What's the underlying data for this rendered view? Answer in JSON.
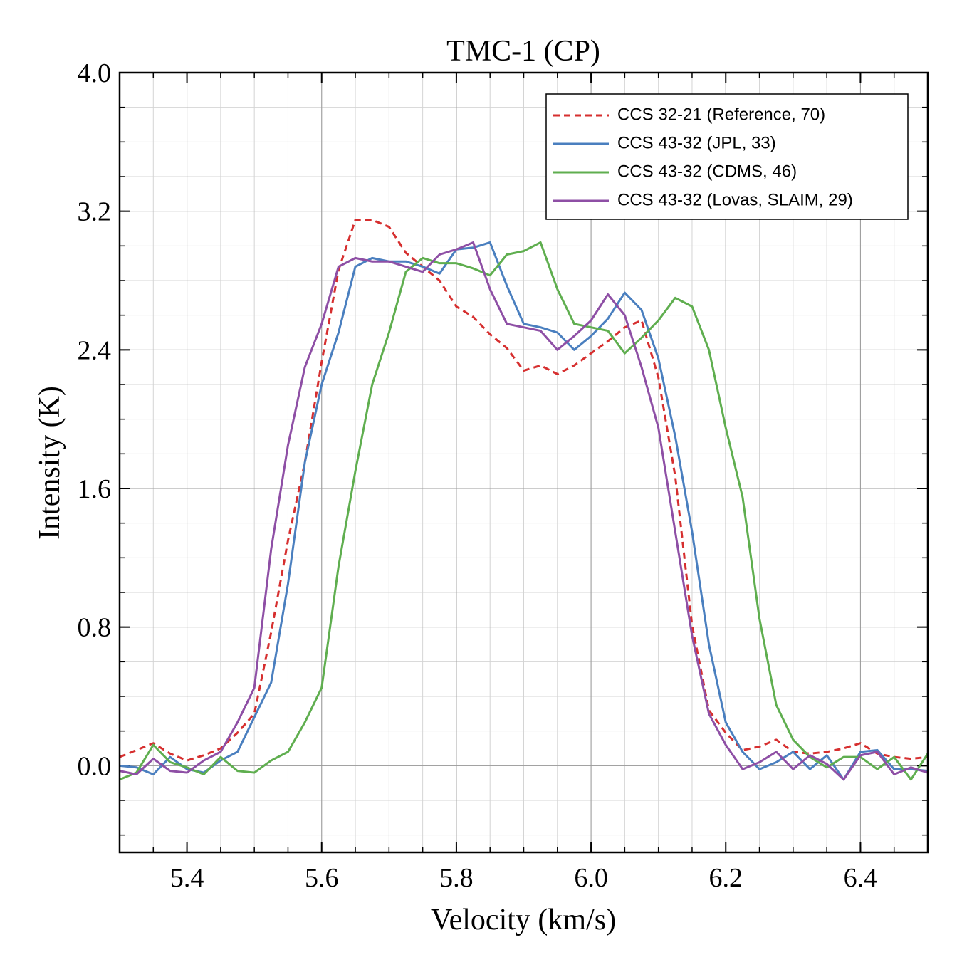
{
  "chart_data": {
    "type": "line",
    "title": "TMC-1 (CP)",
    "xlabel": "Velocity (km/s)",
    "ylabel": "Intensity (K)",
    "x": [
      5.3,
      5.325,
      5.35,
      5.375,
      5.4,
      5.425,
      5.45,
      5.475,
      5.5,
      5.525,
      5.55,
      5.575,
      5.6,
      5.625,
      5.65,
      5.675,
      5.7,
      5.725,
      5.75,
      5.775,
      5.8,
      5.825,
      5.85,
      5.875,
      5.9,
      5.925,
      5.95,
      5.975,
      6.0,
      6.025,
      6.05,
      6.075,
      6.1,
      6.125,
      6.15,
      6.175,
      6.2,
      6.225,
      6.25,
      6.275,
      6.3,
      6.325,
      6.35,
      6.375,
      6.4,
      6.425,
      6.45,
      6.475,
      6.5
    ],
    "series": [
      {
        "name": "CCS 32-21 (Reference, 70)",
        "color": "#d62f2f",
        "linestyle": "dashed",
        "values": [
          0.05,
          0.09,
          0.13,
          0.07,
          0.03,
          0.06,
          0.1,
          0.19,
          0.3,
          0.77,
          1.3,
          1.75,
          2.33,
          2.86,
          3.15,
          3.15,
          3.11,
          2.96,
          2.88,
          2.8,
          2.65,
          2.59,
          2.49,
          2.41,
          2.28,
          2.31,
          2.26,
          2.31,
          2.38,
          2.45,
          2.53,
          2.57,
          2.24,
          1.67,
          0.81,
          0.32,
          0.19,
          0.09,
          0.11,
          0.15,
          0.08,
          0.07,
          0.08,
          0.1,
          0.13,
          0.07,
          0.05,
          0.04,
          0.05
        ]
      },
      {
        "name": "CCS 43-32 (JPL, 33)",
        "color": "#4a7fbf",
        "linestyle": "solid",
        "values": [
          0.0,
          -0.01,
          -0.05,
          0.05,
          -0.02,
          -0.04,
          0.03,
          0.08,
          0.28,
          0.48,
          1.05,
          1.75,
          2.2,
          2.5,
          2.88,
          2.93,
          2.91,
          2.91,
          2.88,
          2.84,
          2.98,
          2.99,
          3.02,
          2.77,
          2.55,
          2.53,
          2.5,
          2.4,
          2.48,
          2.58,
          2.73,
          2.63,
          2.35,
          1.9,
          1.35,
          0.7,
          0.25,
          0.08,
          -0.02,
          0.02,
          0.08,
          -0.02,
          0.06,
          -0.08,
          0.08,
          0.09,
          -0.02,
          -0.02,
          -0.03
        ]
      },
      {
        "name": "CCS 43-32 (CDMS, 46)",
        "color": "#5fae4f",
        "linestyle": "solid",
        "values": [
          -0.08,
          -0.04,
          0.12,
          0.02,
          -0.01,
          -0.05,
          0.05,
          -0.03,
          -0.04,
          0.03,
          0.08,
          0.25,
          0.45,
          1.15,
          1.7,
          2.2,
          2.5,
          2.85,
          2.93,
          2.9,
          2.9,
          2.87,
          2.83,
          2.95,
          2.97,
          3.02,
          2.75,
          2.55,
          2.53,
          2.51,
          2.38,
          2.47,
          2.57,
          2.7,
          2.65,
          2.4,
          1.95,
          1.55,
          0.85,
          0.35,
          0.15,
          0.05,
          -0.01,
          0.05,
          0.05,
          -0.02,
          0.05,
          -0.08,
          0.07
        ]
      },
      {
        "name": "CCS 43-32 (Lovas, SLAIM, 29)",
        "color": "#8e4fa5",
        "linestyle": "solid",
        "values": [
          -0.03,
          -0.05,
          0.04,
          -0.03,
          -0.04,
          0.03,
          0.08,
          0.25,
          0.45,
          1.25,
          1.85,
          2.3,
          2.55,
          2.88,
          2.93,
          2.91,
          2.91,
          2.88,
          2.85,
          2.95,
          2.98,
          3.02,
          2.75,
          2.55,
          2.53,
          2.51,
          2.4,
          2.48,
          2.57,
          2.72,
          2.6,
          2.3,
          1.95,
          1.35,
          0.75,
          0.3,
          0.12,
          -0.02,
          0.02,
          0.08,
          -0.02,
          0.06,
          0.01,
          -0.08,
          0.06,
          0.08,
          -0.05,
          -0.01,
          -0.04
        ]
      }
    ],
    "xlim": [
      5.3,
      6.5
    ],
    "xticks": [
      5.4,
      5.6,
      5.8,
      {
        "value": 6.0,
        "label": "6.0"
      },
      6.2,
      6.4
    ],
    "ylim": [
      -0.5,
      4.0
    ],
    "yticks": [
      {
        "value": 0.0,
        "label": "0.0"
      },
      0.8,
      1.6,
      2.4,
      3.2,
      {
        "value": 4.0,
        "label": "4.0"
      }
    ],
    "grid": true,
    "legend": "upper right"
  }
}
